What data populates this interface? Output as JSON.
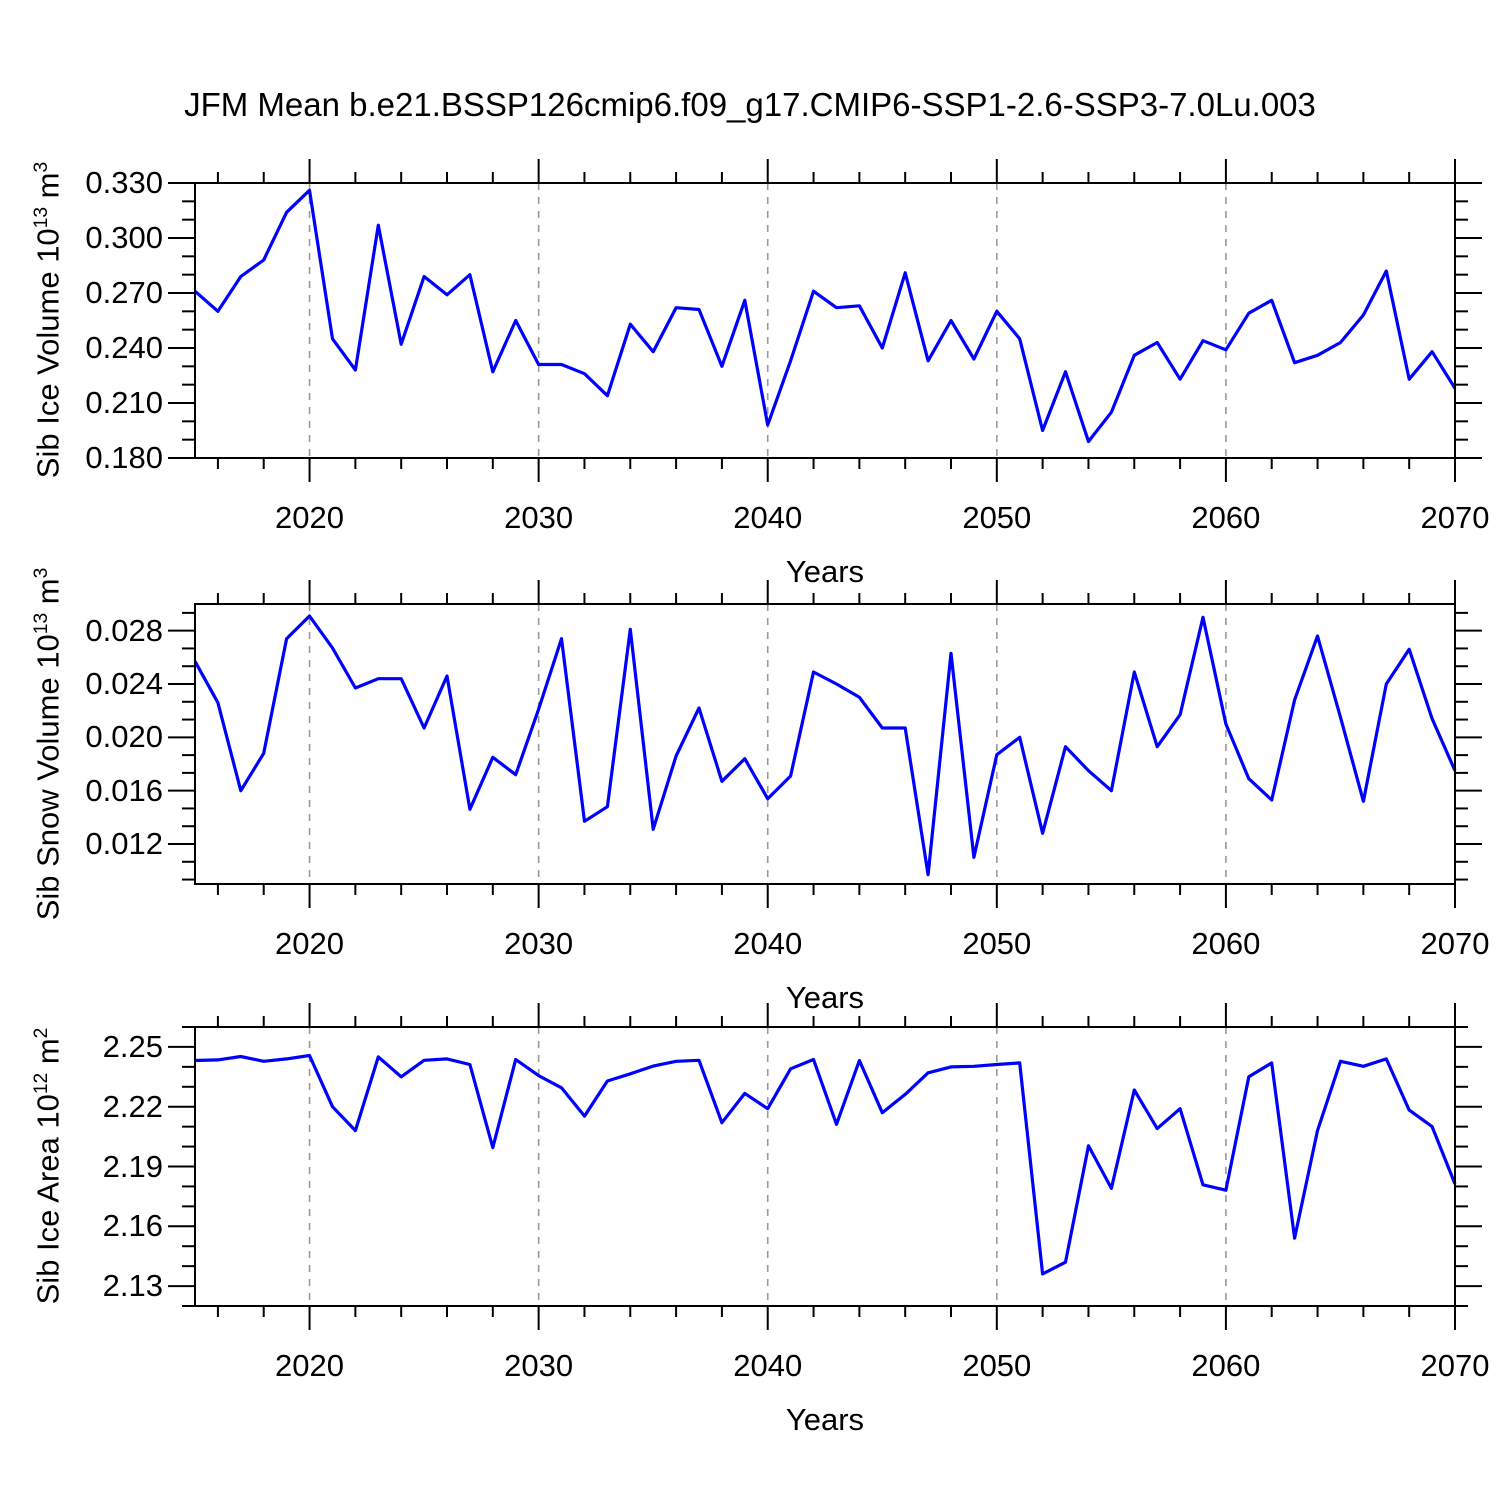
{
  "colors": {
    "background": "#ffffff",
    "text": "#000000",
    "axis": "#000000",
    "gridline": "#9a9a9a",
    "line": "#0000ff"
  },
  "chart_data": {
    "type": "line",
    "title": "JFM Mean b.e21.BSSP126cmip6.f09_g17.CMIP6-SSP1-2.6-SSP3-7.0Lu.003",
    "x_label": "Years",
    "xlim": [
      2015,
      2070
    ],
    "xticks": {
      "values": [
        2020,
        2030,
        2040,
        2050,
        2060,
        2070
      ],
      "labels": [
        "2020",
        "2030",
        "2040",
        "2050",
        "2060",
        "2070"
      ],
      "minor_step": 2
    },
    "grid_x": [
      2020,
      2030,
      2040,
      2050,
      2060
    ],
    "grid_style": "dashed",
    "legend": "none",
    "x": [
      2015,
      2016,
      2017,
      2018,
      2019,
      2020,
      2021,
      2022,
      2023,
      2024,
      2025,
      2026,
      2027,
      2028,
      2029,
      2030,
      2031,
      2032,
      2033,
      2034,
      2035,
      2036,
      2037,
      2038,
      2039,
      2040,
      2041,
      2042,
      2043,
      2044,
      2045,
      2046,
      2047,
      2048,
      2049,
      2050,
      2051,
      2052,
      2053,
      2054,
      2055,
      2056,
      2057,
      2058,
      2059,
      2060,
      2061,
      2062,
      2063,
      2064,
      2065,
      2066,
      2067,
      2068,
      2069,
      2070
    ],
    "panels": [
      {
        "name": "sib-ice-volume",
        "ylabel_text": "Sib Ice Volume 10^13 m^3",
        "ylabel_parts": {
          "prefix": "Sib Ice Volume 10",
          "sup1": "13",
          "mid": " m",
          "sup2": "3"
        },
        "ylim": [
          0.18,
          0.33
        ],
        "yticks": {
          "values": [
            0.18,
            0.21,
            0.24,
            0.27,
            0.3,
            0.33
          ],
          "labels": [
            "0.180",
            "0.210",
            "0.240",
            "0.270",
            "0.300",
            "0.330"
          ],
          "minor_divisions": 3
        },
        "values": [
          0.271,
          0.26,
          0.279,
          0.288,
          0.314,
          0.326,
          0.245,
          0.228,
          0.307,
          0.242,
          0.279,
          0.269,
          0.28,
          0.227,
          0.255,
          0.231,
          0.231,
          0.226,
          0.214,
          0.253,
          0.238,
          0.262,
          0.261,
          0.23,
          0.266,
          0.198,
          0.233,
          0.271,
          0.262,
          0.263,
          0.24,
          0.281,
          0.233,
          0.255,
          0.234,
          0.26,
          0.245,
          0.195,
          0.227,
          0.189,
          0.205,
          0.236,
          0.243,
          0.223,
          0.244,
          0.239,
          0.259,
          0.266,
          0.232,
          0.236,
          0.243,
          0.258,
          0.282,
          0.223,
          0.238,
          0.218
        ]
      },
      {
        "name": "sib-snow-volume",
        "ylabel_text": "Sib Snow Volume 10^13 m^3",
        "ylabel_parts": {
          "prefix": "Sib Snow Volume 10",
          "sup1": "13",
          "mid": " m",
          "sup2": "3"
        },
        "ylim": [
          0.009,
          0.03
        ],
        "yticks": {
          "values": [
            0.012,
            0.016,
            0.02,
            0.024,
            0.028
          ],
          "labels": [
            "0.012",
            "0.016",
            "0.020",
            "0.024",
            "0.028"
          ],
          "minor_divisions": 3
        },
        "values": [
          0.0257,
          0.0226,
          0.016,
          0.0188,
          0.0274,
          0.0291,
          0.0267,
          0.0237,
          0.0244,
          0.0244,
          0.0207,
          0.0246,
          0.0146,
          0.0185,
          0.0172,
          0.0221,
          0.0274,
          0.0137,
          0.0148,
          0.0281,
          0.0131,
          0.0186,
          0.0222,
          0.0167,
          0.0184,
          0.0154,
          0.0171,
          0.0249,
          0.024,
          0.023,
          0.0207,
          0.0207,
          0.0097,
          0.0263,
          0.011,
          0.0187,
          0.02,
          0.0128,
          0.0193,
          0.0175,
          0.016,
          0.0249,
          0.0193,
          0.0217,
          0.029,
          0.021,
          0.0169,
          0.0153,
          0.0228,
          0.0276,
          0.0215,
          0.0152,
          0.024,
          0.0266,
          0.0214,
          0.0175
        ]
      },
      {
        "name": "sib-ice-area",
        "ylabel_text": "Sib Ice Area 10^12 m^2",
        "ylabel_parts": {
          "prefix": "Sib Ice Area 10",
          "sup1": "12",
          "mid": " m",
          "sup2": "2"
        },
        "ylim": [
          2.12,
          2.26
        ],
        "yticks": {
          "values": [
            2.13,
            2.16,
            2.19,
            2.22,
            2.25
          ],
          "labels": [
            "2.13",
            "2.16",
            "2.19",
            "2.22",
            "2.25"
          ],
          "minor_divisions": 3
        },
        "values": [
          2.2432,
          2.2435,
          2.2452,
          2.2428,
          2.244,
          2.2457,
          2.22,
          2.208,
          2.245,
          2.235,
          2.2433,
          2.244,
          2.2412,
          2.1995,
          2.2437,
          2.2356,
          2.2295,
          2.2153,
          2.2329,
          2.2365,
          2.2404,
          2.2428,
          2.2433,
          2.212,
          2.2267,
          2.219,
          2.239,
          2.2437,
          2.2112,
          2.2432,
          2.217,
          2.2262,
          2.237,
          2.24,
          2.2403,
          2.2412,
          2.242,
          2.1361,
          2.142,
          2.2004,
          2.179,
          2.2284,
          2.209,
          2.219,
          2.1808,
          2.1781,
          2.235,
          2.242,
          2.154,
          2.208,
          2.2428,
          2.2403,
          2.244,
          2.2183,
          2.21,
          2.1812
        ]
      }
    ]
  }
}
